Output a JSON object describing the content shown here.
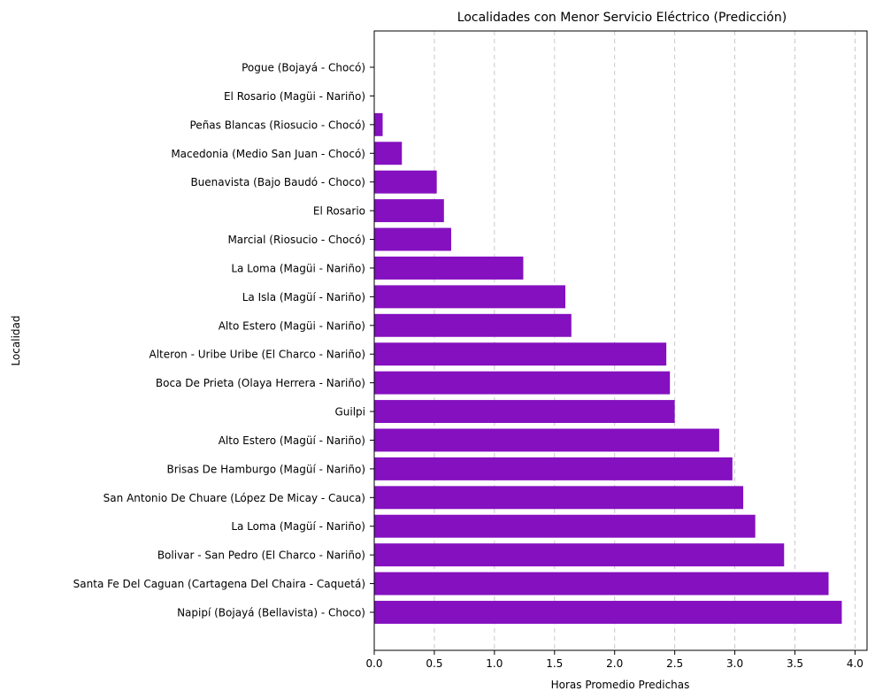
{
  "chart_data": {
    "type": "bar",
    "orientation": "horizontal",
    "title": "Localidades con Menor Servicio Eléctrico (Predicción)",
    "xlabel": "Horas Promedio Predichas",
    "ylabel": "Localidad",
    "xlim": [
      0,
      4.1
    ],
    "xticks": [
      0.0,
      0.5,
      1.0,
      1.5,
      2.0,
      2.5,
      3.0,
      3.5,
      4.0
    ],
    "xtick_labels": [
      "0.0",
      "0.5",
      "1.0",
      "1.5",
      "2.0",
      "2.5",
      "3.0",
      "3.5",
      "4.0"
    ],
    "grid": "x",
    "bar_color": "#8410c0",
    "categories": [
      "Pogue (Bojayá - Chocó)",
      "El Rosario (Magüi - Nariño)",
      "Peñas Blancas (Riosucio - Chocó)",
      "Macedonia (Medio San Juan - Chocó)",
      "Buenavista (Bajo Baudó - Choco)",
      "El Rosario",
      "Marcial (Riosucio - Chocó)",
      "La Loma (Magüi - Nariño)",
      "La Isla (Magüí - Nariño)",
      "Alto Estero (Magüi - Nariño)",
      "Alteron - Uribe Uribe (El Charco - Nariño)",
      "Boca De Prieta (Olaya Herrera - Nariño)",
      "Guilpi",
      "Alto Estero (Magüí - Nariño)",
      "Brisas De Hamburgo (Magüí - Nariño)",
      "San Antonio De Chuare (López De Micay - Cauca)",
      "La Loma (Magüí - Nariño)",
      "Bolivar - San Pedro (El Charco - Nariño)",
      "Santa Fe Del Caguan (Cartagena Del Chaira - Caquetá)",
      "Napipí (Bojayá (Bellavista) - Choco)"
    ],
    "values": [
      0.0,
      0.0,
      0.07,
      0.23,
      0.52,
      0.58,
      0.64,
      1.24,
      1.59,
      1.64,
      2.43,
      2.46,
      2.5,
      2.87,
      2.98,
      3.07,
      3.17,
      3.41,
      3.78,
      3.89
    ]
  }
}
